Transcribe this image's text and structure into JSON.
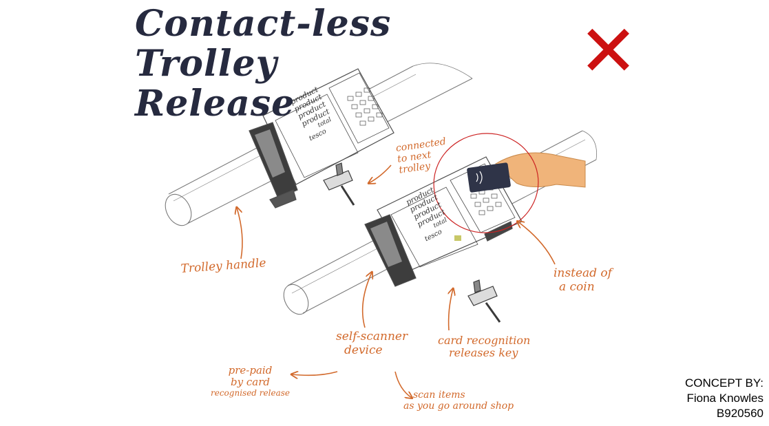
{
  "title": {
    "line1": "Contact-less",
    "line2": "Trolley",
    "line3": "Release"
  },
  "device_screen_text": {
    "rows": [
      "product",
      "product",
      "product",
      "product"
    ],
    "total": "total",
    "brand": "tesco"
  },
  "annotations": {
    "connected": [
      "connected",
      "to next",
      "trolley"
    ],
    "trolley_handle": "Trolley handle",
    "instead_of_coin": [
      "instead of",
      "a coin"
    ],
    "self_scanner": [
      "self-scanner",
      "device"
    ],
    "card_recognition": [
      "card recognition",
      "releases key"
    ],
    "prepaid": [
      "pre-paid",
      "by card",
      "recognised release"
    ],
    "scan_items": [
      "scan items",
      "as you go around shop"
    ]
  },
  "rejection_mark": "✕",
  "credit": {
    "line1": "CONCEPT BY:",
    "line2": "Fiona Knowles",
    "line3": "B920560"
  },
  "colors": {
    "title": "#262a3f",
    "annotation": "#d2692b",
    "rejection": "#cc1111",
    "sketch": "#5a5a5a",
    "hand": "#f0b47a",
    "card": "#2f3448"
  }
}
